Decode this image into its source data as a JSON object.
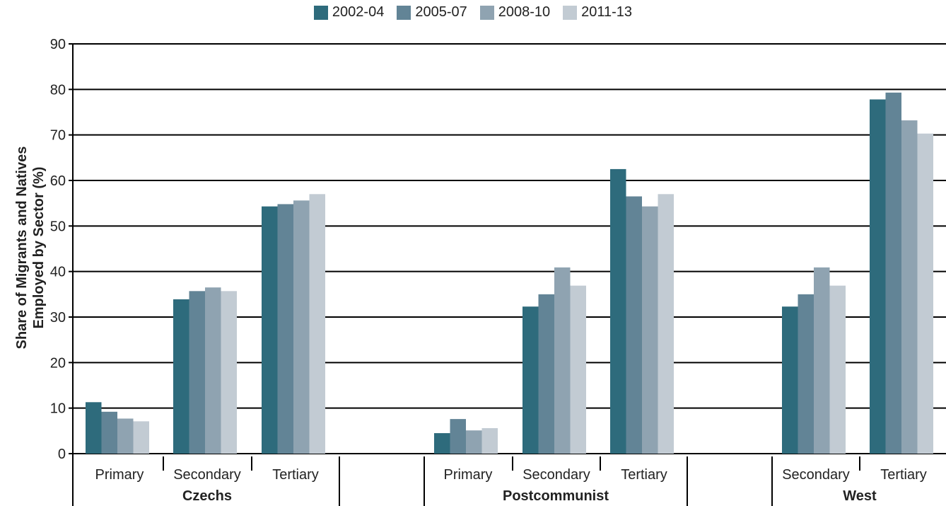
{
  "chart_data": {
    "type": "bar",
    "title": "",
    "ylabel": "Share of Migrants and Natives Employed by Sector (%)",
    "ylabel_lines": [
      "Share of Migrants and Natives",
      "Employed by Sector (%)"
    ],
    "ylim": [
      0,
      90
    ],
    "yticks": [
      0,
      10,
      20,
      30,
      40,
      50,
      60,
      70,
      80,
      90
    ],
    "grid": true,
    "legend_position": "top-center",
    "series": [
      {
        "name": "2002-04",
        "color": "#2e6b7c"
      },
      {
        "name": "2005-07",
        "color": "#628496"
      },
      {
        "name": "2008-10",
        "color": "#8fa3b1"
      },
      {
        "name": "2011-13",
        "color": "#c2cbd3"
      }
    ],
    "groups": [
      {
        "label": "Czechs",
        "categories": [
          {
            "label": "Primary",
            "values": [
              11.3,
              9.2,
              7.7,
              7.1
            ]
          },
          {
            "label": "Secondary",
            "values": [
              33.9,
              35.7,
              36.5,
              35.7
            ]
          },
          {
            "label": "Tertiary",
            "values": [
              54.3,
              54.8,
              55.6,
              57.0
            ]
          }
        ]
      },
      {
        "label": "Postcommunist",
        "categories": [
          {
            "label": "Primary",
            "values": [
              4.5,
              7.6,
              5.1,
              5.6
            ]
          },
          {
            "label": "Secondary",
            "values": [
              32.3,
              35.0,
              40.9,
              36.9
            ]
          },
          {
            "label": "Tertiary",
            "values": [
              62.5,
              56.5,
              54.3,
              57.0
            ]
          }
        ]
      },
      {
        "label": "West",
        "categories": [
          {
            "label": "Secondary",
            "values": [
              32.3,
              35.0,
              40.9,
              36.9
            ]
          },
          {
            "label": "Tertiary",
            "values": [
              77.8,
              79.3,
              73.2,
              70.3
            ]
          }
        ]
      }
    ]
  }
}
